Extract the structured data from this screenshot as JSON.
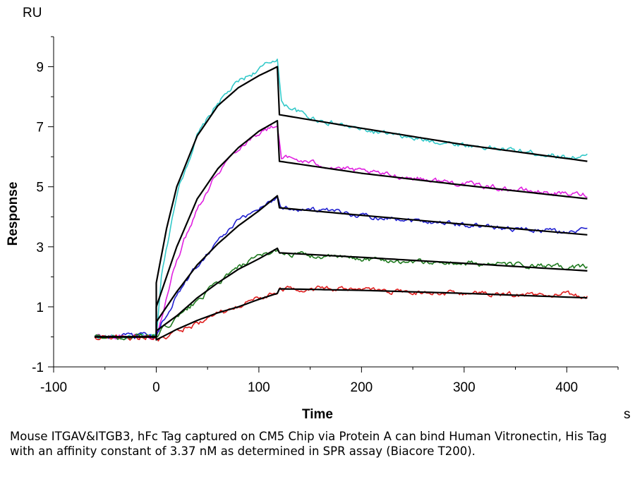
{
  "chart_data": {
    "type": "line",
    "xlabel": "Time",
    "ylabel": "Response",
    "x_unit": "s",
    "y_unit": "RU",
    "xlim": [
      -100,
      450
    ],
    "ylim": [
      -1,
      10
    ],
    "x_ticks": [
      -100,
      0,
      100,
      200,
      300,
      400
    ],
    "y_ticks": [
      -1,
      1,
      3,
      5,
      7,
      9
    ],
    "x_tick_labels": [
      "-100",
      "0",
      "100",
      "200",
      "300",
      "400"
    ],
    "y_tick_labels": [
      "-1",
      "1",
      "3",
      "5",
      "7",
      "9"
    ],
    "grid": false,
    "series": [
      {
        "color": "#33c9c9",
        "points": [
          [
            -60,
            0.0
          ],
          [
            0,
            0.0
          ],
          [
            5,
            2.0
          ],
          [
            20,
            4.8
          ],
          [
            40,
            6.7
          ],
          [
            60,
            7.8
          ],
          [
            80,
            8.5
          ],
          [
            100,
            8.9
          ],
          [
            118,
            9.3
          ],
          [
            122,
            7.8
          ],
          [
            150,
            7.3
          ],
          [
            200,
            6.9
          ],
          [
            250,
            6.6
          ],
          [
            300,
            6.4
          ],
          [
            350,
            6.2
          ],
          [
            400,
            6.0
          ],
          [
            420,
            6.0
          ]
        ]
      },
      {
        "color": "#e020e0",
        "points": [
          [
            -60,
            0.0
          ],
          [
            0,
            0.0
          ],
          [
            5,
            0.6
          ],
          [
            20,
            2.6
          ],
          [
            40,
            4.3
          ],
          [
            60,
            5.5
          ],
          [
            80,
            6.3
          ],
          [
            100,
            6.8
          ],
          [
            118,
            7.05
          ],
          [
            122,
            6.0
          ],
          [
            150,
            5.8
          ],
          [
            200,
            5.5
          ],
          [
            250,
            5.3
          ],
          [
            300,
            5.1
          ],
          [
            350,
            4.9
          ],
          [
            400,
            4.75
          ],
          [
            420,
            4.75
          ]
        ]
      },
      {
        "color": "#2020d0",
        "points": [
          [
            -60,
            0.0
          ],
          [
            0,
            0.0
          ],
          [
            5,
            0.4
          ],
          [
            20,
            1.4
          ],
          [
            40,
            2.4
          ],
          [
            60,
            3.2
          ],
          [
            80,
            3.85
          ],
          [
            100,
            4.3
          ],
          [
            118,
            4.65
          ],
          [
            122,
            4.3
          ],
          [
            150,
            4.25
          ],
          [
            200,
            4.05
          ],
          [
            250,
            3.9
          ],
          [
            300,
            3.75
          ],
          [
            350,
            3.6
          ],
          [
            400,
            3.5
          ],
          [
            420,
            3.55
          ]
        ]
      },
      {
        "color": "#1f7a1f",
        "points": [
          [
            -60,
            0.0
          ],
          [
            0,
            0.0
          ],
          [
            5,
            0.2
          ],
          [
            20,
            0.6
          ],
          [
            40,
            1.2
          ],
          [
            60,
            1.8
          ],
          [
            80,
            2.3
          ],
          [
            100,
            2.65
          ],
          [
            118,
            2.9
          ],
          [
            122,
            2.8
          ],
          [
            150,
            2.7
          ],
          [
            200,
            2.6
          ],
          [
            250,
            2.5
          ],
          [
            300,
            2.45
          ],
          [
            350,
            2.4
          ],
          [
            400,
            2.3
          ],
          [
            420,
            2.35
          ]
        ]
      },
      {
        "color": "#e02020",
        "points": [
          [
            -60,
            0.0
          ],
          [
            0,
            0.0
          ],
          [
            2,
            -0.15
          ],
          [
            20,
            0.15
          ],
          [
            40,
            0.45
          ],
          [
            60,
            0.75
          ],
          [
            80,
            1.0
          ],
          [
            100,
            1.3
          ],
          [
            118,
            1.5
          ],
          [
            122,
            1.6
          ],
          [
            150,
            1.6
          ],
          [
            200,
            1.55
          ],
          [
            250,
            1.5
          ],
          [
            300,
            1.45
          ],
          [
            350,
            1.4
          ],
          [
            400,
            1.4
          ],
          [
            420,
            1.35
          ]
        ]
      }
    ],
    "fits": [
      {
        "color": "#000000",
        "points": [
          [
            -60,
            0.0
          ],
          [
            0,
            0.0
          ],
          [
            0,
            1.8
          ],
          [
            10,
            3.6
          ],
          [
            20,
            5.0
          ],
          [
            40,
            6.7
          ],
          [
            60,
            7.7
          ],
          [
            80,
            8.3
          ],
          [
            100,
            8.7
          ],
          [
            118,
            9.0
          ],
          [
            120,
            7.4
          ],
          [
            200,
            6.95
          ],
          [
            300,
            6.4
          ],
          [
            420,
            5.85
          ]
        ]
      },
      {
        "color": "#000000",
        "points": [
          [
            -60,
            0.0
          ],
          [
            0,
            0.0
          ],
          [
            0,
            1.0
          ],
          [
            20,
            3.0
          ],
          [
            40,
            4.6
          ],
          [
            60,
            5.6
          ],
          [
            80,
            6.3
          ],
          [
            100,
            6.85
          ],
          [
            118,
            7.2
          ],
          [
            120,
            5.85
          ],
          [
            200,
            5.45
          ],
          [
            300,
            5.05
          ],
          [
            420,
            4.6
          ]
        ]
      },
      {
        "color": "#000000",
        "points": [
          [
            -60,
            0.0
          ],
          [
            0,
            0.0
          ],
          [
            0,
            0.5
          ],
          [
            20,
            1.5
          ],
          [
            40,
            2.4
          ],
          [
            60,
            3.1
          ],
          [
            80,
            3.7
          ],
          [
            100,
            4.2
          ],
          [
            118,
            4.7
          ],
          [
            120,
            4.3
          ],
          [
            200,
            4.05
          ],
          [
            300,
            3.75
          ],
          [
            420,
            3.4
          ]
        ]
      },
      {
        "color": "#000000",
        "points": [
          [
            -60,
            0.0
          ],
          [
            0,
            0.0
          ],
          [
            0,
            0.2
          ],
          [
            20,
            0.7
          ],
          [
            40,
            1.3
          ],
          [
            60,
            1.8
          ],
          [
            80,
            2.25
          ],
          [
            100,
            2.6
          ],
          [
            118,
            2.95
          ],
          [
            120,
            2.8
          ],
          [
            200,
            2.65
          ],
          [
            300,
            2.45
          ],
          [
            420,
            2.2
          ]
        ]
      },
      {
        "color": "#000000",
        "points": [
          [
            -60,
            0.0
          ],
          [
            0,
            0.0
          ],
          [
            0,
            -0.1
          ],
          [
            20,
            0.25
          ],
          [
            40,
            0.55
          ],
          [
            60,
            0.8
          ],
          [
            80,
            1.0
          ],
          [
            100,
            1.25
          ],
          [
            118,
            1.45
          ],
          [
            120,
            1.6
          ],
          [
            200,
            1.55
          ],
          [
            300,
            1.45
          ],
          [
            420,
            1.3
          ]
        ]
      }
    ]
  },
  "caption": "Mouse ITGAV&ITGB3, hFc Tag captured on CM5 Chip via Protein A can bind Human Vitronectin, His Tag with an affinity constant of 3.37 nM as determined in SPR assay (Biacore T200)."
}
